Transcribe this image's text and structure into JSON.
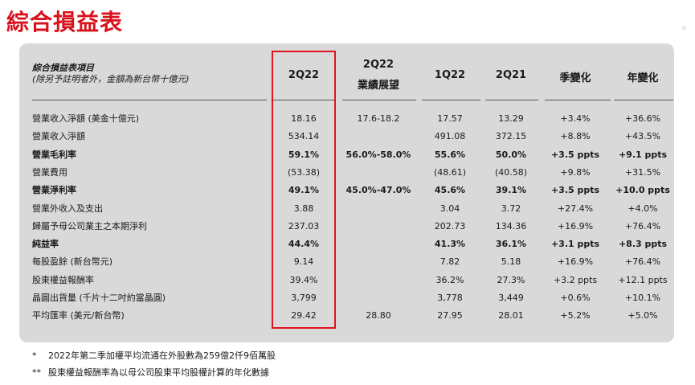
{
  "page": {
    "title": "綜合損益表",
    "corner_mark": "u"
  },
  "table": {
    "header_label": "綜合損益表項目",
    "header_sublabel": "(除另予註明者外，金額為新台幣十億元)",
    "columns": [
      "2Q22",
      "2Q22\n業績展望",
      "1Q22",
      "2Q21",
      "季變化",
      "年變化"
    ],
    "highlighted_column": "2Q22",
    "rows": [
      {
        "label": "營業收入淨額 (美金十億元)",
        "bold": false,
        "values": [
          "18.16",
          "17.6-18.2",
          "17.57",
          "13.29",
          "+3.4%",
          "+36.6%"
        ]
      },
      {
        "label": "營業收入淨額",
        "bold": false,
        "values": [
          "534.14",
          "",
          "491.08",
          "372.15",
          "+8.8%",
          "+43.5%"
        ]
      },
      {
        "label": "營業毛利率",
        "bold": true,
        "values": [
          "59.1%",
          "56.0%-58.0%",
          "55.6%",
          "50.0%",
          "+3.5 ppts",
          "+9.1 ppts"
        ]
      },
      {
        "label": "營業費用",
        "bold": false,
        "values": [
          "(53.38)",
          "",
          "(48.61)",
          "(40.58)",
          "+9.8%",
          "+31.5%"
        ]
      },
      {
        "label": "營業淨利率",
        "bold": true,
        "values": [
          "49.1%",
          "45.0%-47.0%",
          "45.6%",
          "39.1%",
          "+3.5 ppts",
          "+10.0 ppts"
        ]
      },
      {
        "label": "營業外收入及支出",
        "bold": false,
        "values": [
          "3.88",
          "",
          "3.04",
          "3.72",
          "+27.4%",
          "+4.0%"
        ]
      },
      {
        "label": "歸屬予母公司業主之本期淨利",
        "bold": false,
        "values": [
          "237.03",
          "",
          "202.73",
          "134.36",
          "+16.9%",
          "+76.4%"
        ]
      },
      {
        "label": "純益率",
        "bold": true,
        "values": [
          "44.4%",
          "",
          "41.3%",
          "36.1%",
          "+3.1 ppts",
          "+8.3 ppts"
        ]
      },
      {
        "label": "每股盈餘 (新台幣元)",
        "bold": false,
        "values": [
          "9.14",
          "",
          "7.82",
          "5.18",
          "+16.9%",
          "+76.4%"
        ]
      },
      {
        "label": "股東權益報酬率",
        "bold": false,
        "values": [
          "39.4%",
          "",
          "36.2%",
          "27.3%",
          "+3.2 ppts",
          "+12.1 ppts"
        ]
      },
      {
        "label": "晶圓出貨量 (千片十二吋約當晶圓)",
        "bold": false,
        "values": [
          "3,799",
          "",
          "3,778",
          "3,449",
          "+0.6%",
          "+10.1%"
        ]
      },
      {
        "label": "平均匯率 (美元/新台幣)",
        "bold": false,
        "values": [
          "29.42",
          "28.80",
          "27.95",
          "28.01",
          "+5.2%",
          "+5.0%"
        ]
      }
    ]
  },
  "footnotes": [
    {
      "mark": "*",
      "text": "2022年第二季加權平均流通在外股數為259億2仟9佰萬股"
    },
    {
      "mark": "**",
      "text": "股東權益報酬率為以母公司股東平均股權計算的年化數據"
    }
  ]
}
